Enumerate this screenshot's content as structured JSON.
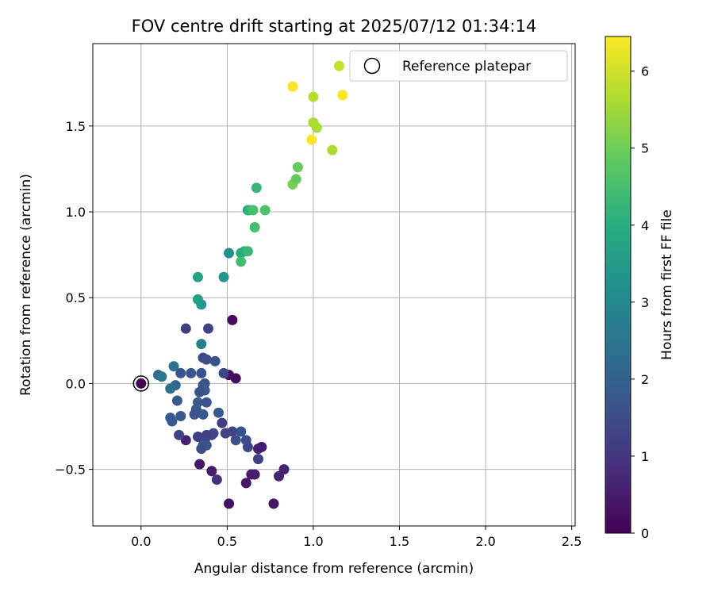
{
  "chart_data": {
    "type": "scatter",
    "title": "FOV centre drift starting at 2025/07/12 01:34:14",
    "xlabel": "Angular distance from reference (arcmin)",
    "ylabel": "Rotation from reference (arcmin)",
    "xlim": [
      -0.28,
      2.52
    ],
    "ylim": [
      -0.83,
      1.98
    ],
    "xticks": [
      0.0,
      0.5,
      1.0,
      1.5,
      2.0,
      2.5
    ],
    "xtick_labels": [
      "0.0",
      "0.5",
      "1.0",
      "1.5",
      "2.0",
      "2.5"
    ],
    "yticks": [
      -0.5,
      0.0,
      0.5,
      1.0,
      1.5
    ],
    "ytick_labels": [
      "−0.5",
      "0.0",
      "0.5",
      "1.0",
      "1.5"
    ],
    "grid": true,
    "legend": {
      "position": "top-right",
      "entries": [
        "Reference platepar"
      ]
    },
    "colorbar": {
      "label": "Hours from first FF file",
      "range": [
        0,
        6.45
      ],
      "ticks": [
        0,
        1,
        2,
        3,
        4,
        5,
        6
      ],
      "tick_labels": [
        "0",
        "1",
        "2",
        "3",
        "4",
        "5",
        "6"
      ],
      "colormap": "viridis"
    },
    "reference_point": {
      "x": 0.0,
      "y": 0.0
    },
    "points": [
      {
        "x": 0.0,
        "y": 0.0,
        "h": 0.0
      },
      {
        "x": 0.53,
        "y": 0.37,
        "h": 0.2
      },
      {
        "x": 0.51,
        "y": 0.05,
        "h": 0.3
      },
      {
        "x": 0.55,
        "y": 0.03,
        "h": 0.25
      },
      {
        "x": 0.51,
        "y": -0.7,
        "h": 0.3
      },
      {
        "x": 0.77,
        "y": -0.7,
        "h": 0.4
      },
      {
        "x": 0.61,
        "y": -0.58,
        "h": 0.4
      },
      {
        "x": 0.64,
        "y": -0.53,
        "h": 0.5
      },
      {
        "x": 0.66,
        "y": -0.53,
        "h": 0.5
      },
      {
        "x": 0.8,
        "y": -0.54,
        "h": 0.6
      },
      {
        "x": 0.83,
        "y": -0.5,
        "h": 0.6
      },
      {
        "x": 0.34,
        "y": -0.47,
        "h": 0.4
      },
      {
        "x": 0.41,
        "y": -0.51,
        "h": 0.5
      },
      {
        "x": 0.44,
        "y": -0.56,
        "h": 0.9
      },
      {
        "x": 0.26,
        "y": -0.33,
        "h": 0.6
      },
      {
        "x": 0.68,
        "y": -0.38,
        "h": 0.6
      },
      {
        "x": 0.7,
        "y": -0.37,
        "h": 0.5
      },
      {
        "x": 0.68,
        "y": -0.44,
        "h": 1.2
      },
      {
        "x": 0.26,
        "y": 0.32,
        "h": 1.2
      },
      {
        "x": 0.39,
        "y": 0.32,
        "h": 1.3
      },
      {
        "x": 0.36,
        "y": 0.15,
        "h": 1.4
      },
      {
        "x": 0.38,
        "y": 0.14,
        "h": 1.5
      },
      {
        "x": 0.43,
        "y": 0.13,
        "h": 1.6
      },
      {
        "x": 0.35,
        "y": 0.06,
        "h": 1.6
      },
      {
        "x": 0.48,
        "y": 0.06,
        "h": 1.4
      },
      {
        "x": 0.29,
        "y": 0.06,
        "h": 1.7
      },
      {
        "x": 0.23,
        "y": 0.06,
        "h": 1.7
      },
      {
        "x": 0.37,
        "y": 0.0,
        "h": 1.7
      },
      {
        "x": 0.36,
        "y": -0.01,
        "h": 1.7
      },
      {
        "x": 0.37,
        "y": -0.04,
        "h": 1.9
      },
      {
        "x": 0.34,
        "y": -0.05,
        "h": 1.6
      },
      {
        "x": 0.2,
        "y": -0.01,
        "h": 2.1
      },
      {
        "x": 0.17,
        "y": -0.03,
        "h": 2.3
      },
      {
        "x": 0.21,
        "y": -0.1,
        "h": 1.8
      },
      {
        "x": 0.33,
        "y": -0.11,
        "h": 1.8
      },
      {
        "x": 0.38,
        "y": -0.11,
        "h": 1.7
      },
      {
        "x": 0.32,
        "y": -0.15,
        "h": 1.8
      },
      {
        "x": 0.36,
        "y": -0.18,
        "h": 1.8
      },
      {
        "x": 0.45,
        "y": -0.17,
        "h": 1.8
      },
      {
        "x": 0.31,
        "y": -0.18,
        "h": 1.7
      },
      {
        "x": 0.23,
        "y": -0.19,
        "h": 1.8
      },
      {
        "x": 0.17,
        "y": -0.2,
        "h": 1.9
      },
      {
        "x": 0.18,
        "y": -0.22,
        "h": 1.8
      },
      {
        "x": 0.47,
        "y": -0.23,
        "h": 1.2
      },
      {
        "x": 0.53,
        "y": -0.28,
        "h": 1.3
      },
      {
        "x": 0.58,
        "y": -0.28,
        "h": 1.6
      },
      {
        "x": 0.49,
        "y": -0.29,
        "h": 1.3
      },
      {
        "x": 0.42,
        "y": -0.29,
        "h": 1.5
      },
      {
        "x": 0.41,
        "y": -0.3,
        "h": 1.3
      },
      {
        "x": 0.38,
        "y": -0.3,
        "h": 1.2
      },
      {
        "x": 0.22,
        "y": -0.3,
        "h": 1.3
      },
      {
        "x": 0.33,
        "y": -0.31,
        "h": 1.2
      },
      {
        "x": 0.37,
        "y": -0.33,
        "h": 1.3
      },
      {
        "x": 0.61,
        "y": -0.33,
        "h": 1.5
      },
      {
        "x": 0.55,
        "y": -0.33,
        "h": 1.6
      },
      {
        "x": 0.36,
        "y": -0.36,
        "h": 1.6
      },
      {
        "x": 0.38,
        "y": -0.36,
        "h": 1.7
      },
      {
        "x": 0.35,
        "y": -0.38,
        "h": 1.5
      },
      {
        "x": 0.62,
        "y": -0.37,
        "h": 1.4
      },
      {
        "x": 0.1,
        "y": 0.05,
        "h": 2.2
      },
      {
        "x": 0.12,
        "y": 0.04,
        "h": 2.5
      },
      {
        "x": 0.19,
        "y": 0.1,
        "h": 2.4
      },
      {
        "x": 0.35,
        "y": 0.23,
        "h": 2.8
      },
      {
        "x": 0.33,
        "y": 0.49,
        "h": 3.6
      },
      {
        "x": 0.35,
        "y": 0.46,
        "h": 3.5
      },
      {
        "x": 0.33,
        "y": 0.62,
        "h": 3.7
      },
      {
        "x": 0.48,
        "y": 0.62,
        "h": 3.4
      },
      {
        "x": 0.51,
        "y": 0.76,
        "h": 3.2
      },
      {
        "x": 0.58,
        "y": 0.76,
        "h": 4.0
      },
      {
        "x": 0.6,
        "y": 0.77,
        "h": 4.0
      },
      {
        "x": 0.62,
        "y": 0.77,
        "h": 4.3
      },
      {
        "x": 0.58,
        "y": 0.71,
        "h": 4.4
      },
      {
        "x": 0.62,
        "y": 1.01,
        "h": 3.7
      },
      {
        "x": 0.63,
        "y": 1.01,
        "h": 4.2
      },
      {
        "x": 0.65,
        "y": 1.01,
        "h": 4.5
      },
      {
        "x": 0.66,
        "y": 0.91,
        "h": 4.5
      },
      {
        "x": 0.67,
        "y": 1.14,
        "h": 4.3
      },
      {
        "x": 0.72,
        "y": 1.01,
        "h": 4.6
      },
      {
        "x": 0.88,
        "y": 1.16,
        "h": 5.1
      },
      {
        "x": 0.9,
        "y": 1.19,
        "h": 4.9
      },
      {
        "x": 0.91,
        "y": 1.26,
        "h": 4.9
      },
      {
        "x": 1.0,
        "y": 1.52,
        "h": 5.6
      },
      {
        "x": 1.02,
        "y": 1.49,
        "h": 5.6
      },
      {
        "x": 0.99,
        "y": 1.42,
        "h": 6.4
      },
      {
        "x": 1.11,
        "y": 1.36,
        "h": 5.6
      },
      {
        "x": 0.88,
        "y": 1.73,
        "h": 6.4
      },
      {
        "x": 1.0,
        "y": 1.67,
        "h": 5.7
      },
      {
        "x": 1.17,
        "y": 1.68,
        "h": 6.4
      },
      {
        "x": 1.15,
        "y": 1.85,
        "h": 5.9
      }
    ]
  }
}
